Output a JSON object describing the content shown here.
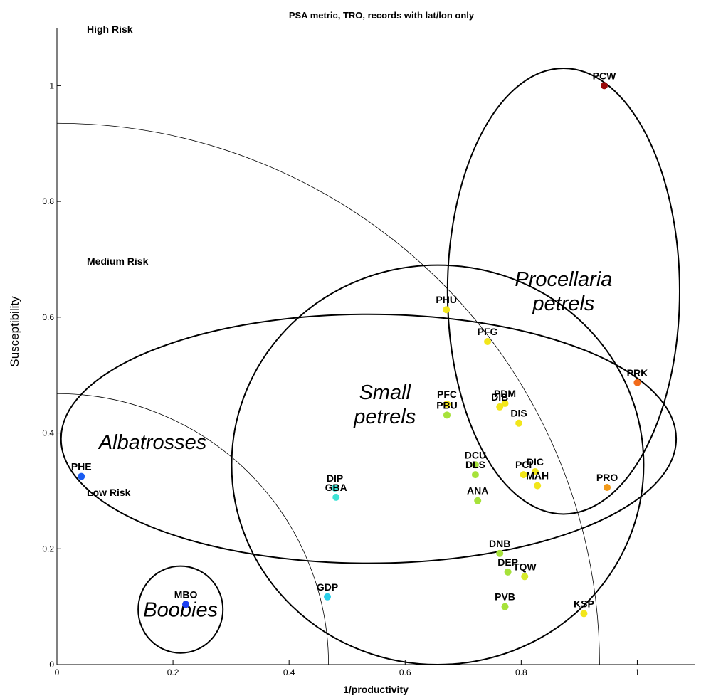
{
  "chart_data": {
    "type": "scatter",
    "title": "PSA metric, TRO, records with lat/lon only",
    "xlabel": "1/productivity",
    "ylabel": "Susceptibility",
    "xlim": [
      0,
      1.1
    ],
    "ylim": [
      0,
      1.1
    ],
    "grid": false,
    "x_ticks": [
      0,
      0.2,
      0.4,
      0.6,
      0.8,
      1
    ],
    "x_tick_labels": [
      "0",
      "0.2",
      "0.4",
      "0.6",
      "0.8",
      "1"
    ],
    "y_ticks": [
      0,
      0.2,
      0.4,
      0.6,
      0.8,
      1
    ],
    "y_tick_labels": [
      "0",
      "0.2",
      "0.4",
      "0.6",
      "0.8",
      "1"
    ],
    "risk_zones": {
      "high": "High Risk",
      "medium": "Medium Risk",
      "low": "Low Risk"
    },
    "risk_boundaries": [
      0.468,
      0.935
    ],
    "points": [
      {
        "label": "PCW",
        "x": 0.943,
        "y": 1.0,
        "color": "#9b0a0a"
      },
      {
        "label": "PHU",
        "x": 0.671,
        "y": 0.613,
        "color": "#f2e61a"
      },
      {
        "label": "PFG",
        "x": 0.742,
        "y": 0.558,
        "color": "#f2e61a"
      },
      {
        "label": "PRK",
        "x": 1.0,
        "y": 0.487,
        "color": "#f26b1a"
      },
      {
        "label": "PFC",
        "x": 0.672,
        "y": 0.45,
        "color": "#f2e61a"
      },
      {
        "label": "PBU",
        "x": 0.672,
        "y": 0.431,
        "color": "#a6e23a"
      },
      {
        "label": "PDM",
        "x": 0.772,
        "y": 0.451,
        "color": "#f2e61a"
      },
      {
        "label": "DIB",
        "x": 0.763,
        "y": 0.445,
        "color": "#f2e61a"
      },
      {
        "label": "DIS",
        "x": 0.796,
        "y": 0.417,
        "color": "#f2e61a"
      },
      {
        "label": "DCU",
        "x": 0.721,
        "y": 0.345,
        "color": "#a6e23a"
      },
      {
        "label": "DLS",
        "x": 0.721,
        "y": 0.328,
        "color": "#a6e23a"
      },
      {
        "label": "PCI",
        "x": 0.804,
        "y": 0.328,
        "color": "#f2e61a"
      },
      {
        "label": "DIC",
        "x": 0.824,
        "y": 0.333,
        "color": "#f2e61a"
      },
      {
        "label": "MAH",
        "x": 0.828,
        "y": 0.309,
        "color": "#f2e61a"
      },
      {
        "label": "PRO",
        "x": 0.948,
        "y": 0.306,
        "color": "#f29a1a"
      },
      {
        "label": "ANA",
        "x": 0.725,
        "y": 0.283,
        "color": "#a6e23a"
      },
      {
        "label": "DIP",
        "x": 0.479,
        "y": 0.305,
        "color": "#3fe3d6"
      },
      {
        "label": "GBA",
        "x": 0.481,
        "y": 0.289,
        "color": "#3fe3d6"
      },
      {
        "label": "PHE",
        "x": 0.042,
        "y": 0.325,
        "color": "#1a5cf2"
      },
      {
        "label": "DNB",
        "x": 0.763,
        "y": 0.192,
        "color": "#a6e23a"
      },
      {
        "label": "DEP",
        "x": 0.777,
        "y": 0.16,
        "color": "#a6e23a"
      },
      {
        "label": "TQW",
        "x": 0.806,
        "y": 0.152,
        "color": "#d5ea2a"
      },
      {
        "label": "GDP",
        "x": 0.466,
        "y": 0.117,
        "color": "#2ad0ea"
      },
      {
        "label": "MBO",
        "x": 0.222,
        "y": 0.104,
        "color": "#1a3ff2"
      },
      {
        "label": "PVB",
        "x": 0.772,
        "y": 0.1,
        "color": "#a6e23a"
      },
      {
        "label": "KSP",
        "x": 0.908,
        "y": 0.088,
        "color": "#f2e61a"
      }
    ],
    "groups": [
      {
        "name": "Procellaria\npetrels",
        "cx": 0.873,
        "cy": 0.645,
        "rx": 0.2,
        "ry": 0.385
      },
      {
        "name": "Small\npetrels",
        "cx": 0.656,
        "cy": 0.345,
        "rx": 0.355,
        "ry": 0.345,
        "label_x": 0.565,
        "label_y": 0.45
      },
      {
        "name": "Albatrosses",
        "cx": 0.537,
        "cy": 0.39,
        "rx": 0.53,
        "ry": 0.215,
        "label_x": 0.165,
        "label_y": 0.385
      },
      {
        "name": "Boobies",
        "cx": 0.213,
        "cy": 0.095,
        "rx": 0.073,
        "ry": 0.075
      }
    ]
  }
}
